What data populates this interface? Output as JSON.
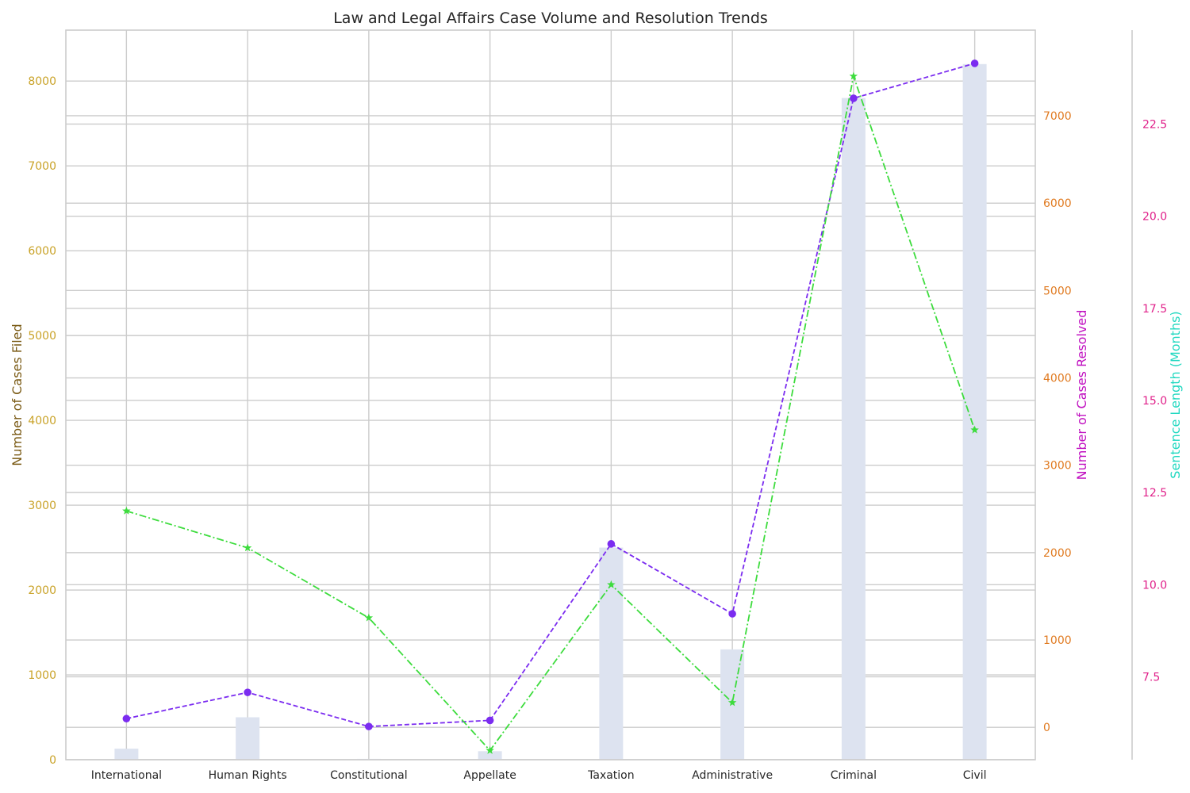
{
  "chart_data": {
    "type": "bar",
    "title": "Law and Legal Affairs Case Volume and Resolution Trends",
    "categories": [
      "International",
      "Human Rights",
      "Constitutional",
      "Appellate",
      "Taxation",
      "Administrative",
      "Criminal",
      "Civil"
    ],
    "series": [
      {
        "type": "bar",
        "axis": "left",
        "values": [
          130,
          500,
          10,
          100,
          2500,
          1300,
          7800,
          8200
        ],
        "color": "#dde3f0"
      },
      {
        "type": "line",
        "axis": "right1",
        "values": [
          100,
          400,
          10,
          80,
          2100,
          1300,
          7200,
          7600
        ],
        "color": "#7b2cf0",
        "line_style": "dashed",
        "marker": "circle"
      },
      {
        "type": "line",
        "axis": "right2",
        "values": [
          12.0,
          11.0,
          9.1,
          5.5,
          10.0,
          6.8,
          23.8,
          14.2
        ],
        "color": "#3ddc3d",
        "line_style": "dashdot",
        "marker": "star"
      }
    ],
    "axes": {
      "left": {
        "label": "Number of Cases Filed",
        "range": [
          0,
          8600
        ],
        "ticks": [
          0,
          1000,
          2000,
          3000,
          4000,
          5000,
          6000,
          7000,
          8000
        ],
        "label_color": "#7a5a14",
        "tick_color": "#c9a227"
      },
      "right1": {
        "label": "Number of Cases Resolved",
        "range": [
          -370,
          7980
        ],
        "ticks": [
          0,
          1000,
          2000,
          3000,
          4000,
          5000,
          6000,
          7000
        ],
        "label_color": "#c010c0",
        "tick_color": "#e07a20"
      },
      "right2": {
        "label": "Sentence Length (Months)",
        "range": [
          5.25,
          25.05
        ],
        "ticks": [
          7.5,
          10.0,
          12.5,
          15.0,
          17.5,
          20.0,
          22.5
        ],
        "tick_labels": [
          "7.5",
          "10.0",
          "12.5",
          "15.0",
          "17.5",
          "20.0",
          "22.5"
        ],
        "label_color": "#20d8c0",
        "tick_color": "#e0208a"
      }
    },
    "grid": true,
    "legend": "none"
  }
}
